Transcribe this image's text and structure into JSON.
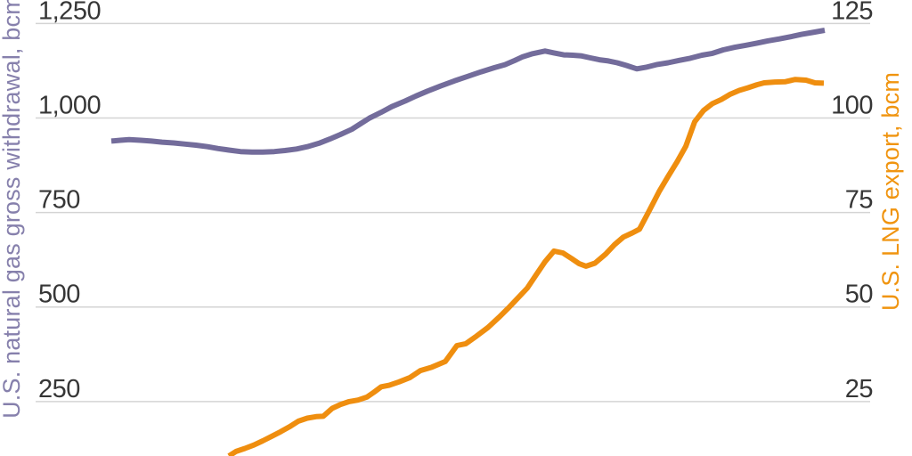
{
  "colors": {
    "background": "#ffffff",
    "gridline": "#d4d4d4",
    "tick_text": "#363636",
    "withdrawal_line": "#736c9b",
    "withdrawal_title": "#8680ac",
    "lng_line": "#ef8e0f",
    "lng_title": "#f0940f"
  },
  "axes": {
    "left": {
      "title": "U.S. natural gas gross withdrawal, bcm",
      "ticks": [
        "1,250",
        "1,000",
        "750",
        "500",
        "250"
      ]
    },
    "right": {
      "title": "U.S. LNG export, bcm",
      "ticks": [
        "125",
        "100",
        "75",
        "50",
        "25"
      ]
    }
  },
  "chart_data": {
    "type": "line",
    "grid": "horizontal",
    "x_axis_labels_visible": false,
    "left_ylim": [
      106,
      1312
    ],
    "right_ylim": [
      10.6,
      131.2
    ],
    "left_ticks": [
      {
        "label": "1,250",
        "value": 1250
      },
      {
        "label": "1,000",
        "value": 1000
      },
      {
        "label": "750",
        "value": 750
      },
      {
        "label": "500",
        "value": 500
      },
      {
        "label": "250",
        "value": 250
      }
    ],
    "right_ticks": [
      {
        "label": "125",
        "value": 125
      },
      {
        "label": "100",
        "value": 100
      },
      {
        "label": "75",
        "value": 75
      },
      {
        "label": "50",
        "value": 50
      },
      {
        "label": "25",
        "value": 25
      }
    ],
    "series": [
      {
        "name": "U.S. natural gas gross withdrawal, bcm",
        "axis": "left",
        "color_key": "withdrawal_line",
        "points": [
          [
            0.0907,
            939
          ],
          [
            0.1014,
            941
          ],
          [
            0.1121,
            943
          ],
          [
            0.1259,
            941
          ],
          [
            0.1387,
            939
          ],
          [
            0.1515,
            936
          ],
          [
            0.1654,
            934
          ],
          [
            0.1793,
            931
          ],
          [
            0.1921,
            928
          ],
          [
            0.206,
            924
          ],
          [
            0.2188,
            919
          ],
          [
            0.2316,
            915
          ],
          [
            0.2455,
            911
          ],
          [
            0.2593,
            910
          ],
          [
            0.2721,
            910
          ],
          [
            0.286,
            911
          ],
          [
            0.2988,
            914
          ],
          [
            0.3127,
            918
          ],
          [
            0.3255,
            924
          ],
          [
            0.3394,
            933
          ],
          [
            0.3522,
            944
          ],
          [
            0.365,
            956
          ],
          [
            0.3789,
            970
          ],
          [
            0.3895,
            985
          ],
          [
            0.4002,
            1000
          ],
          [
            0.4141,
            1015
          ],
          [
            0.4269,
            1030
          ],
          [
            0.4429,
            1045
          ],
          [
            0.4557,
            1058
          ],
          [
            0.4696,
            1071
          ],
          [
            0.4856,
            1085
          ],
          [
            0.5016,
            1098
          ],
          [
            0.5176,
            1110
          ],
          [
            0.5336,
            1122
          ],
          [
            0.5496,
            1133
          ],
          [
            0.5624,
            1141
          ],
          [
            0.5742,
            1152
          ],
          [
            0.5838,
            1162
          ],
          [
            0.5955,
            1170
          ],
          [
            0.6105,
            1177
          ],
          [
            0.6211,
            1172
          ],
          [
            0.6329,
            1167
          ],
          [
            0.6435,
            1166
          ],
          [
            0.6542,
            1164
          ],
          [
            0.6649,
            1159
          ],
          [
            0.6756,
            1154
          ],
          [
            0.6862,
            1151
          ],
          [
            0.6969,
            1146
          ],
          [
            0.7076,
            1139
          ],
          [
            0.7204,
            1130
          ],
          [
            0.7311,
            1134
          ],
          [
            0.7439,
            1141
          ],
          [
            0.7577,
            1146
          ],
          [
            0.7705,
            1152
          ],
          [
            0.7844,
            1158
          ],
          [
            0.7983,
            1166
          ],
          [
            0.8111,
            1171
          ],
          [
            0.8239,
            1180
          ],
          [
            0.8378,
            1187
          ],
          [
            0.8506,
            1192
          ],
          [
            0.8645,
            1198
          ],
          [
            0.8773,
            1204
          ],
          [
            0.8912,
            1209
          ],
          [
            0.905,
            1215
          ],
          [
            0.9178,
            1221
          ],
          [
            0.9306,
            1226
          ],
          [
            0.9456,
            1232
          ]
        ]
      },
      {
        "name": "U.S. LNG export, bcm",
        "axis": "right",
        "color_key": "lng_line",
        "points": [
          [
            0.2316,
            10.6
          ],
          [
            0.2401,
            11.8
          ],
          [
            0.2508,
            12.6
          ],
          [
            0.2615,
            13.5
          ],
          [
            0.2721,
            14.6
          ],
          [
            0.2828,
            15.8
          ],
          [
            0.2935,
            17.0
          ],
          [
            0.3041,
            18.3
          ],
          [
            0.3148,
            19.8
          ],
          [
            0.3255,
            20.6
          ],
          [
            0.3362,
            21.0
          ],
          [
            0.3447,
            21.1
          ],
          [
            0.3554,
            23.2
          ],
          [
            0.365,
            24.2
          ],
          [
            0.3757,
            25.0
          ],
          [
            0.3863,
            25.4
          ],
          [
            0.397,
            26.2
          ],
          [
            0.4055,
            27.5
          ],
          [
            0.4141,
            28.9
          ],
          [
            0.4237,
            29.3
          ],
          [
            0.4354,
            30.2
          ],
          [
            0.4482,
            31.3
          ],
          [
            0.461,
            33.2
          ],
          [
            0.4749,
            34.1
          ],
          [
            0.4909,
            35.6
          ],
          [
            0.5048,
            39.8
          ],
          [
            0.5155,
            40.3
          ],
          [
            0.5283,
            42.3
          ],
          [
            0.5421,
            44.6
          ],
          [
            0.5549,
            47.2
          ],
          [
            0.5677,
            50.0
          ],
          [
            0.5784,
            52.5
          ],
          [
            0.5891,
            55.0
          ],
          [
            0.5998,
            58.5
          ],
          [
            0.6105,
            62.0
          ],
          [
            0.6211,
            64.8
          ],
          [
            0.6318,
            64.3
          ],
          [
            0.6424,
            62.8
          ],
          [
            0.651,
            61.5
          ],
          [
            0.6595,
            60.8
          ],
          [
            0.6702,
            61.6
          ],
          [
            0.683,
            64.0
          ],
          [
            0.6937,
            66.5
          ],
          [
            0.7043,
            68.5
          ],
          [
            0.715,
            69.6
          ],
          [
            0.7236,
            70.6
          ],
          [
            0.7342,
            75.0
          ],
          [
            0.7471,
            80.5
          ],
          [
            0.7577,
            84.5
          ],
          [
            0.7684,
            88.3
          ],
          [
            0.7791,
            92.5
          ],
          [
            0.7898,
            99.0
          ],
          [
            0.8004,
            102.0
          ],
          [
            0.8111,
            103.8
          ],
          [
            0.8218,
            104.9
          ],
          [
            0.8325,
            106.3
          ],
          [
            0.8431,
            107.3
          ],
          [
            0.8538,
            108.0
          ],
          [
            0.8645,
            108.8
          ],
          [
            0.873,
            109.3
          ],
          [
            0.8858,
            109.5
          ],
          [
            0.8986,
            109.6
          ],
          [
            0.9104,
            110.2
          ],
          [
            0.9232,
            110.0
          ],
          [
            0.9338,
            109.3
          ],
          [
            0.9445,
            109.2
          ]
        ]
      }
    ]
  }
}
